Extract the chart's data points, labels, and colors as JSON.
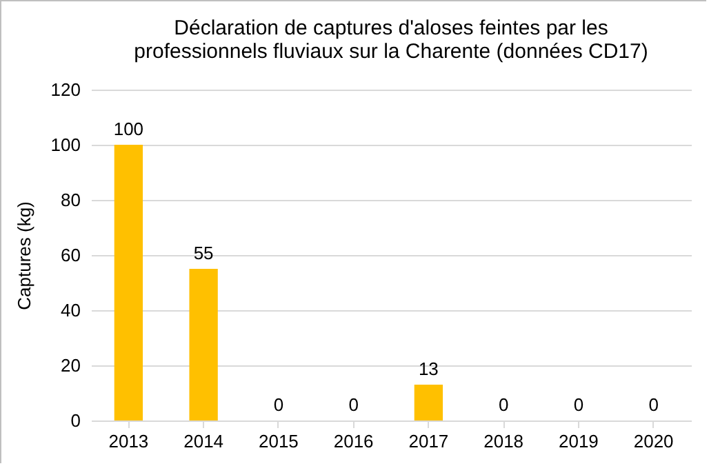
{
  "chart_data": {
    "type": "bar",
    "title": "Déclaration de captures d'aloses feintes par les professionnels fluviaux sur la Charente (données CD17)",
    "ylabel": "Captures (kg)",
    "categories": [
      "2013",
      "2014",
      "2015",
      "2016",
      "2017",
      "2018",
      "2019",
      "2020"
    ],
    "values": [
      100,
      55,
      0,
      0,
      13,
      0,
      0,
      0
    ],
    "color": "#ffc000",
    "ylim": [
      0,
      120
    ],
    "yticks": [
      0,
      20,
      40,
      60,
      80,
      100,
      120
    ],
    "grid": "y",
    "data_labels": true
  }
}
